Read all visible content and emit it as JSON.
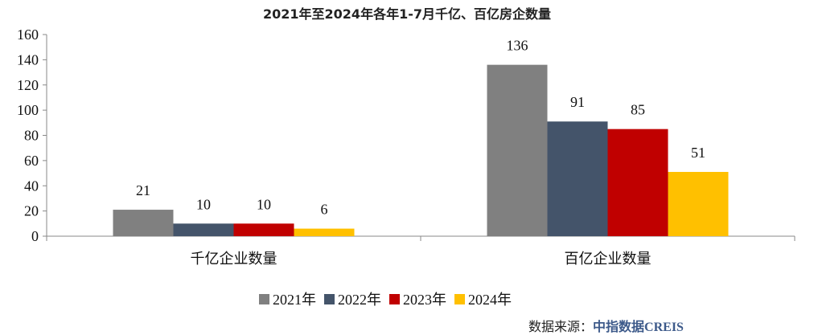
{
  "watermark": "中指数据 CREIS",
  "chart_data": {
    "type": "bar",
    "title": "2021年至2024年各年1-7月千亿、百亿房企数量",
    "categories": [
      "千亿企业数量",
      "百亿企业数量"
    ],
    "series": [
      {
        "name": "2021年",
        "values": [
          21,
          136
        ],
        "color": "#808080"
      },
      {
        "name": "2022年",
        "values": [
          10,
          91
        ],
        "color": "#44546a"
      },
      {
        "name": "2023年",
        "values": [
          10,
          85
        ],
        "color": "#c00000"
      },
      {
        "name": "2024年",
        "values": [
          6,
          51
        ],
        "color": "#ffc000"
      }
    ],
    "ylim": [
      0,
      160
    ],
    "yticks": [
      0,
      20,
      40,
      60,
      80,
      100,
      120,
      140,
      160
    ],
    "grid": false,
    "legend": "bottom",
    "data_labels": true
  },
  "source": {
    "label": "数据来源：",
    "brand_cn": "中指数据",
    "brand_en": "CREIS"
  }
}
